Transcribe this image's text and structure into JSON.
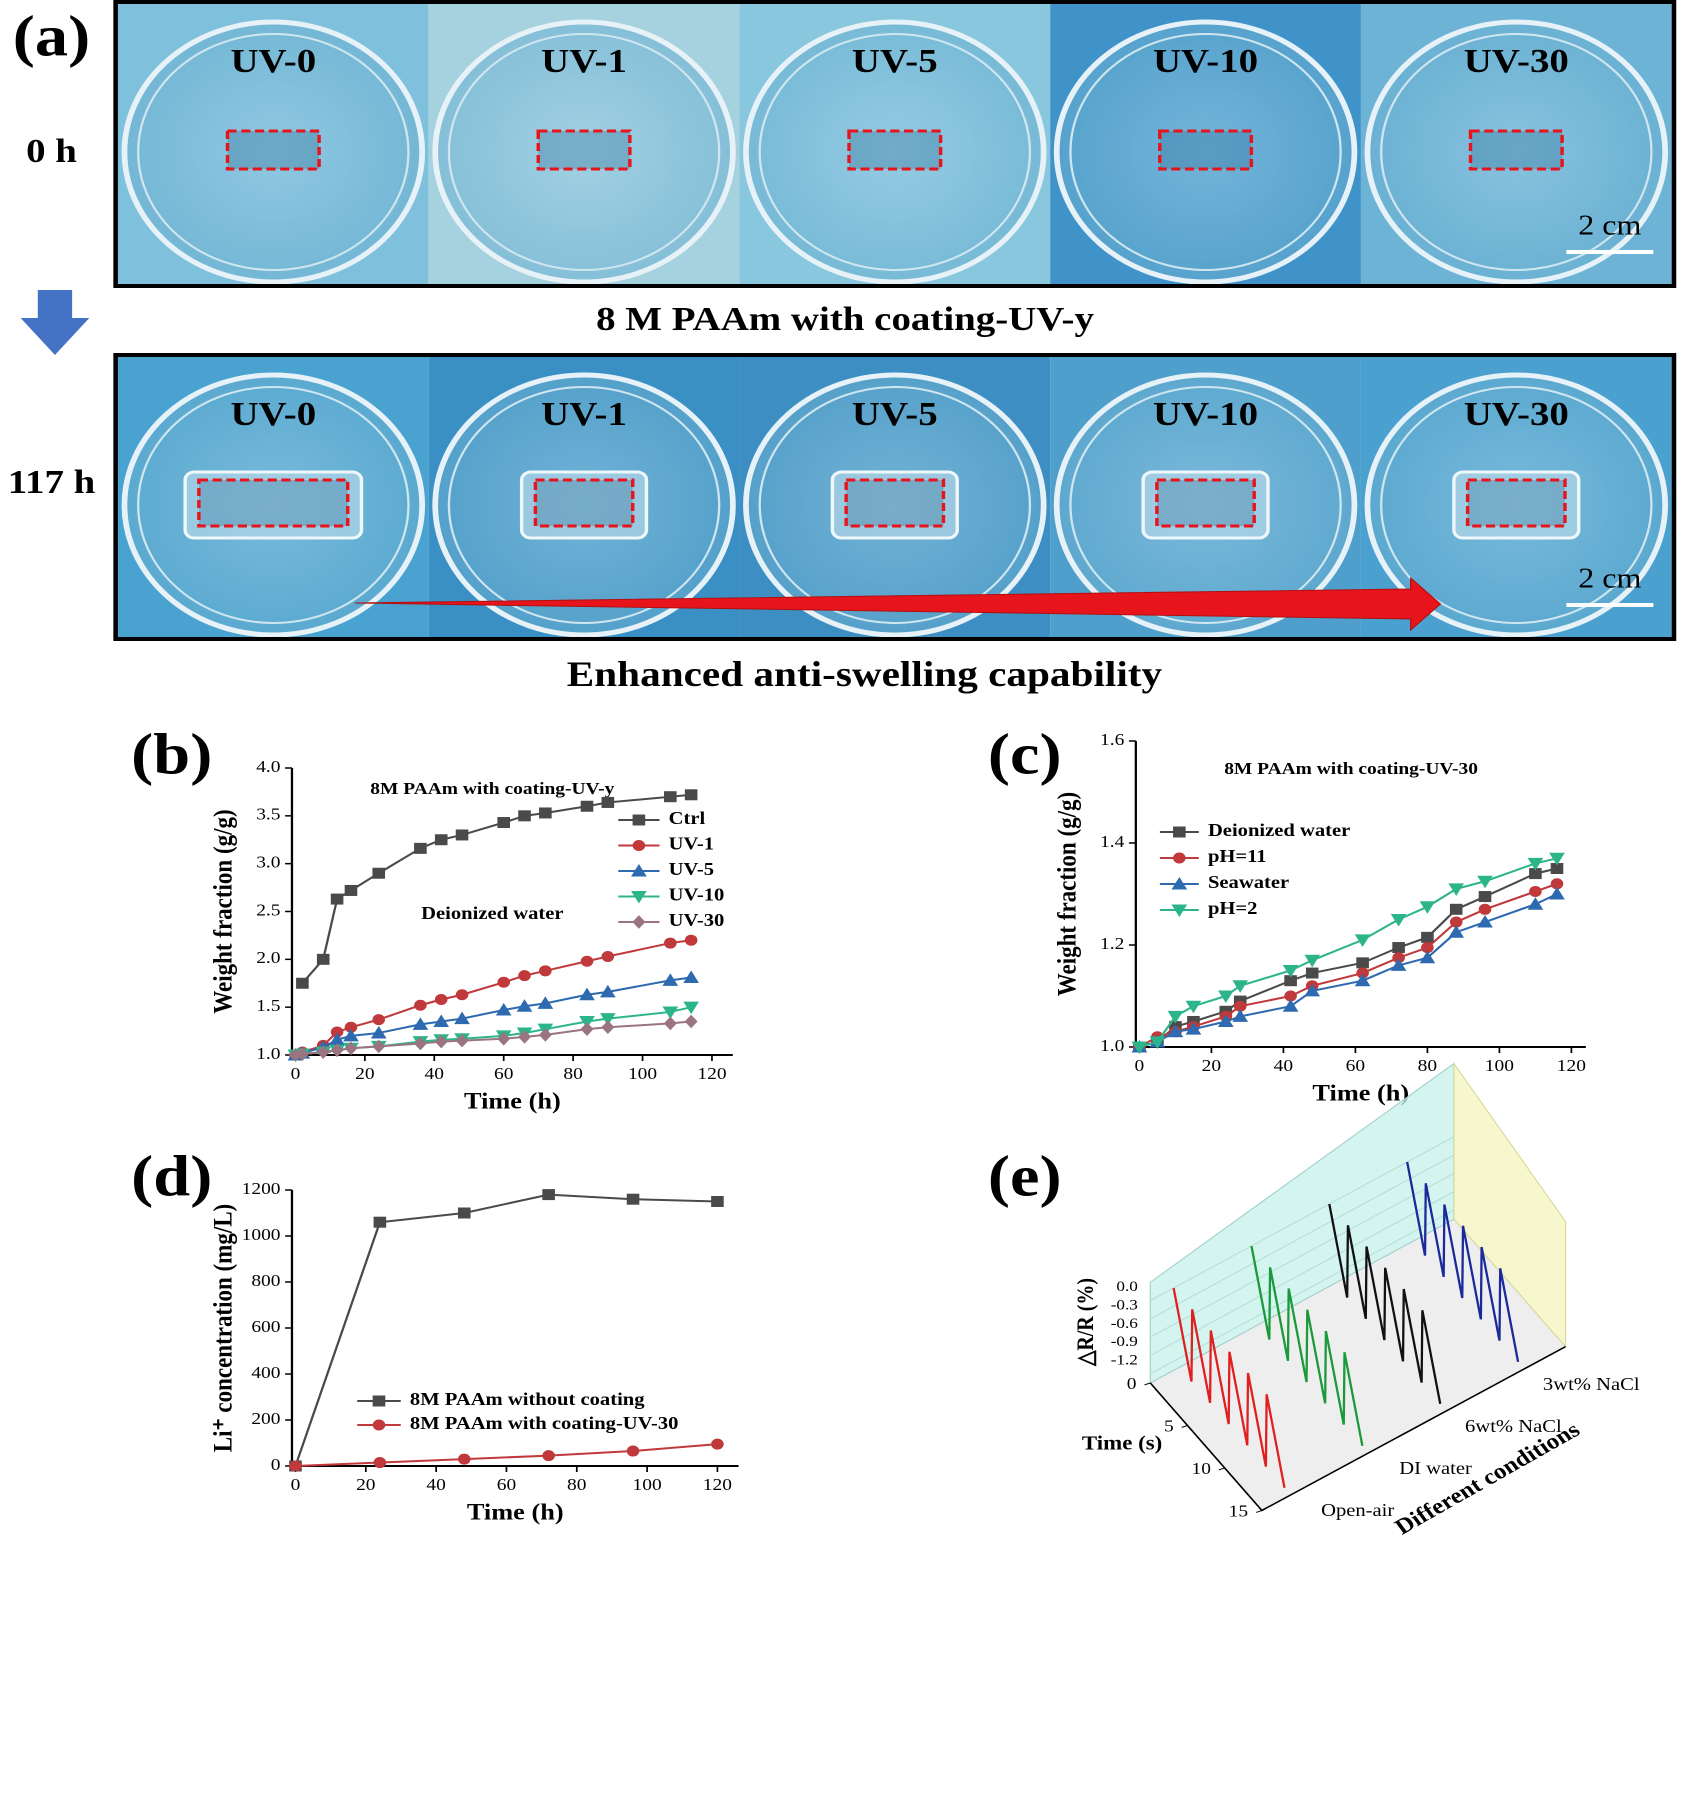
{
  "panel_a": {
    "label": "(a)",
    "rows": [
      {
        "time": "0 h",
        "samples": [
          "UV-0",
          "UV-1",
          "UV-5",
          "UV-10",
          "UV-30"
        ],
        "scale_bar": "2 cm"
      },
      {
        "time": "117 h",
        "samples": [
          "UV-0",
          "UV-1",
          "UV-5",
          "UV-10",
          "UV-30"
        ],
        "scale_bar": "2 cm"
      }
    ],
    "caption": "8 M PAAm with coating-UV-y",
    "conclusion": "Enhanced anti-swelling capability"
  },
  "chart_data": [
    {
      "type": "line",
      "label": "(b)",
      "title": "8M PAAm with coating-UV-y",
      "annotation": "Deionized water",
      "xlabel": "Time (h)",
      "ylabel": "Weight fraction (g/g)",
      "xlim": [
        -1,
        126
      ],
      "ylim": [
        1,
        4
      ],
      "xticks": [
        0,
        20,
        40,
        60,
        80,
        100,
        120
      ],
      "yticks": [
        {
          "value": 1,
          "label": "1.0"
        },
        1.5,
        {
          "value": 2,
          "label": "2.0"
        },
        2.5,
        {
          "value": 3,
          "label": "3.0"
        },
        3.5,
        {
          "value": 4,
          "label": "4.0"
        }
      ],
      "x": [
        0,
        2,
        8,
        12,
        16,
        24,
        36,
        42,
        48,
        60,
        66,
        72,
        84,
        90,
        108,
        114
      ],
      "series": [
        {
          "name": "Ctrl",
          "color": "#4a4a4a",
          "marker": "square",
          "values": [
            null,
            1.75,
            2.0,
            2.63,
            2.72,
            2.9,
            3.16,
            3.25,
            3.3,
            3.43,
            3.5,
            3.53,
            3.6,
            3.64,
            3.7,
            3.72
          ]
        },
        {
          "name": "UV-1",
          "color": "#c0393b",
          "marker": "circle",
          "values": [
            1.0,
            1.03,
            1.1,
            1.24,
            1.29,
            1.37,
            1.52,
            1.58,
            1.63,
            1.76,
            1.83,
            1.88,
            1.98,
            2.03,
            2.17,
            2.2
          ]
        },
        {
          "name": "UV-5",
          "color": "#2e6ab0",
          "marker": "triangle",
          "values": [
            1.0,
            1.02,
            1.08,
            1.16,
            1.2,
            1.23,
            1.32,
            1.35,
            1.38,
            1.47,
            1.51,
            1.54,
            1.63,
            1.66,
            1.78,
            1.81
          ]
        },
        {
          "name": "UV-10",
          "color": "#2cb58a",
          "marker": "triangle-down",
          "values": [
            1.0,
            1.01,
            1.03,
            1.05,
            1.07,
            1.09,
            1.14,
            1.16,
            1.17,
            1.2,
            1.23,
            1.27,
            1.35,
            1.38,
            1.45,
            1.5
          ]
        },
        {
          "name": "UV-30",
          "color": "#9a7480",
          "marker": "diamond",
          "values": [
            1.0,
            1.01,
            1.03,
            1.05,
            1.07,
            1.09,
            1.12,
            1.14,
            1.15,
            1.17,
            1.19,
            1.21,
            1.27,
            1.29,
            1.33,
            1.35
          ]
        }
      ]
    },
    {
      "type": "line",
      "label": "(c)",
      "title": "8M PAAm with coating-UV-30",
      "xlabel": "Time (h)",
      "ylabel": "Weight fraction (g/g)",
      "xlim": [
        -1,
        124
      ],
      "ylim": [
        1,
        1.6
      ],
      "xticks": [
        0,
        20,
        40,
        60,
        80,
        100,
        120
      ],
      "yticks": [
        {
          "value": 1,
          "label": "1.0"
        },
        1.2,
        1.4,
        1.6
      ],
      "x": [
        0,
        5,
        10,
        15,
        24,
        28,
        42,
        48,
        62,
        72,
        80,
        88,
        96,
        110,
        116
      ],
      "series": [
        {
          "name": "Deionized water",
          "color": "#4a4a4a",
          "marker": "square",
          "values": [
            1.0,
            1.01,
            1.04,
            1.05,
            1.07,
            1.09,
            1.13,
            1.145,
            1.165,
            1.195,
            1.215,
            1.27,
            1.295,
            1.34,
            1.35
          ]
        },
        {
          "name": "pH=11",
          "color": "#c0393b",
          "marker": "circle",
          "values": [
            1.0,
            1.02,
            1.03,
            1.04,
            1.06,
            1.08,
            1.1,
            1.12,
            1.145,
            1.175,
            1.195,
            1.245,
            1.27,
            1.305,
            1.32
          ]
        },
        {
          "name": "Seawater",
          "color": "#2e6ab0",
          "marker": "triangle",
          "values": [
            1.0,
            1.01,
            1.03,
            1.035,
            1.05,
            1.06,
            1.08,
            1.11,
            1.13,
            1.16,
            1.175,
            1.225,
            1.245,
            1.28,
            1.3
          ]
        },
        {
          "name": "pH=2",
          "color": "#2cb58a",
          "marker": "triangle-down",
          "values": [
            1.0,
            1.01,
            1.06,
            1.08,
            1.1,
            1.12,
            1.15,
            1.17,
            1.21,
            1.25,
            1.275,
            1.31,
            1.325,
            1.36,
            1.37
          ]
        }
      ]
    },
    {
      "type": "line",
      "label": "(d)",
      "xlabel": "Time (h)",
      "ylabel": "Li⁺ concentration (mg/L)",
      "xlim": [
        -1,
        126
      ],
      "ylim": [
        0,
        1200
      ],
      "xticks": [
        0,
        20,
        40,
        60,
        80,
        100,
        120
      ],
      "yticks": [
        0,
        200,
        400,
        600,
        800,
        1000,
        1200
      ],
      "x": [
        0,
        24,
        48,
        72,
        96,
        120
      ],
      "series": [
        {
          "name": "8M PAAm without coating",
          "color": "#4a4a4a",
          "marker": "square",
          "values": [
            0,
            1060,
            1100,
            1180,
            1160,
            1150
          ]
        },
        {
          "name": "8M PAAm with coating-UV-30",
          "color": "#c0393b",
          "marker": "circle",
          "values": [
            0,
            15,
            30,
            45,
            65,
            95
          ]
        }
      ]
    },
    {
      "type": "waterfall3d",
      "label": "(e)",
      "xlabel": "Time (s)",
      "zlabel": "△R/R (%)",
      "category_label": "Different conditions",
      "categories": [
        "Open-air",
        "DI water",
        "6wt% NaCl",
        "3wt% NaCl"
      ],
      "xlim": [
        0,
        15
      ],
      "xticks": [
        0,
        5,
        10,
        15
      ],
      "zlim": [
        -1.2,
        0
      ],
      "zticks": [
        {
          "value": 0,
          "label": "0.0"
        },
        -0.3,
        -0.6,
        -0.9,
        -1.2
      ],
      "x": [
        0,
        2.4,
        2.5,
        4.9,
        5,
        7.4,
        7.5,
        9.9,
        10,
        12.4,
        12.5,
        14.9
      ],
      "series": [
        {
          "color": "#e02020",
          "values": [
            0,
            -1.2,
            0,
            -1.2,
            0,
            -1.2,
            0,
            -1.2,
            0,
            -1.2,
            0,
            -1.2
          ]
        },
        {
          "color": "#1a9a3a",
          "values": [
            0,
            -1.2,
            0,
            -1.2,
            0,
            -1.2,
            0,
            -1.2,
            0,
            -1.2,
            0,
            -1.2
          ]
        },
        {
          "color": "#111111",
          "values": [
            0,
            -1.2,
            0,
            -1.2,
            0,
            -1.2,
            0,
            -1.2,
            0,
            -1.2,
            0,
            -1.2
          ]
        },
        {
          "color": "#1a2a9a",
          "values": [
            0,
            -1.2,
            0,
            -1.2,
            0,
            -1.2,
            0,
            -1.2,
            0,
            -1.2,
            0,
            -1.2
          ]
        }
      ]
    }
  ]
}
